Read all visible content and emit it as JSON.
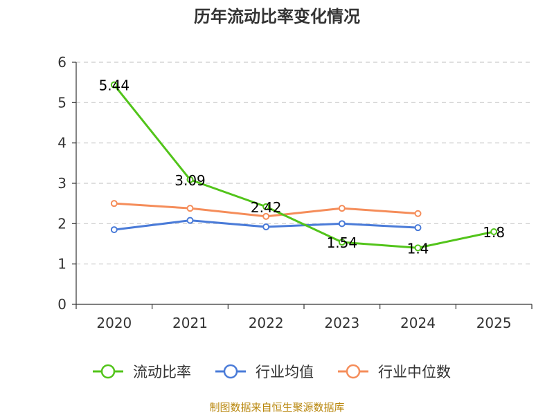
{
  "chart_data": {
    "type": "line",
    "title": "历年流动比率变化情况",
    "categories": [
      "2020",
      "2021",
      "2022",
      "2023",
      "2024",
      "2025"
    ],
    "ylim": [
      0,
      6
    ],
    "yticks": [
      0,
      1,
      2,
      3,
      4,
      5,
      6
    ],
    "grid": true,
    "legend_position": "bottom",
    "series": [
      {
        "name": "流动比率",
        "color": "#52c41a",
        "values": [
          5.44,
          3.09,
          2.42,
          1.54,
          1.4,
          1.8
        ],
        "labels": [
          "5.44",
          "3.09",
          "2.42",
          "1.54",
          "1.4",
          "1.8"
        ]
      },
      {
        "name": "行业均值",
        "color": "#4a7bd8",
        "values": [
          1.85,
          2.08,
          1.92,
          2.0,
          1.9,
          null
        ]
      },
      {
        "name": "行业中位数",
        "color": "#f58d5a",
        "values": [
          2.5,
          2.38,
          2.18,
          2.38,
          2.25,
          null
        ]
      }
    ]
  },
  "source": "制图数据来自恒生聚源数据库"
}
